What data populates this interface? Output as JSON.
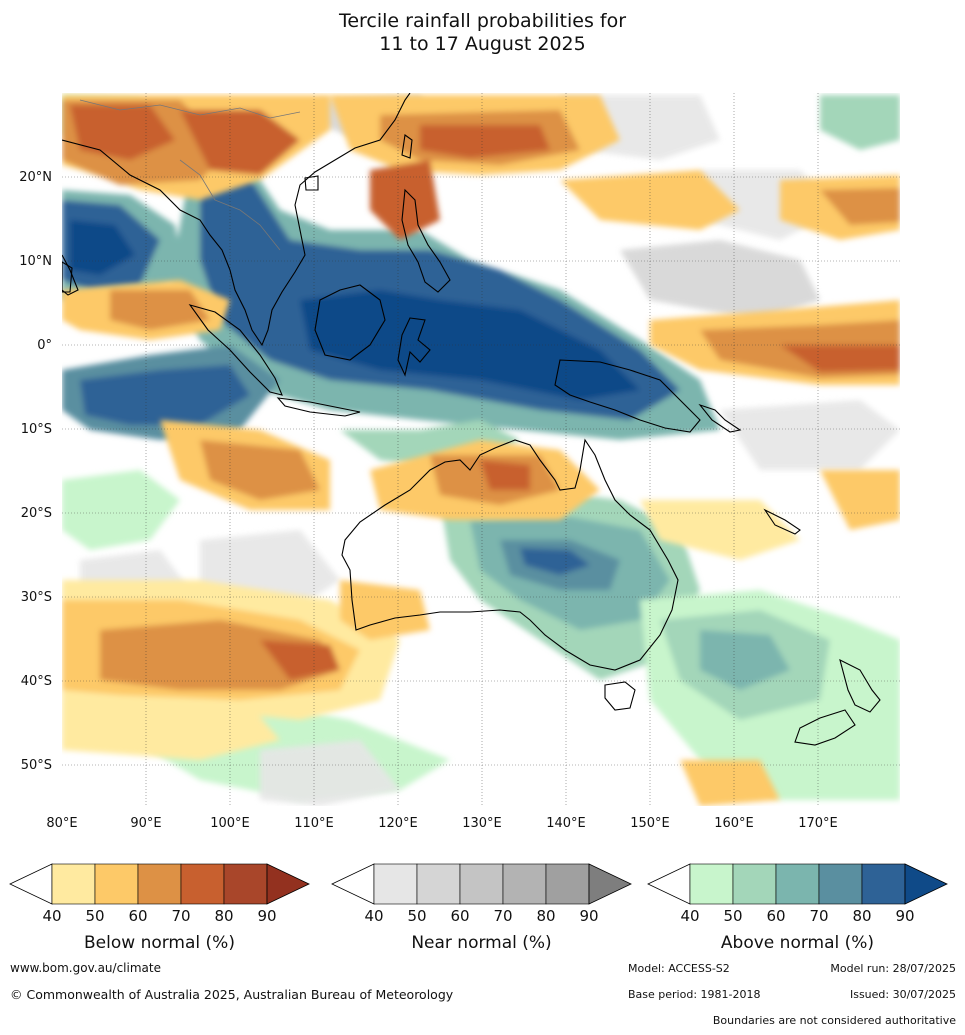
{
  "title_line1": "Tercile rainfall probabilities for",
  "title_line2": "11 to 17 August 2025",
  "lon_labels": [
    "80°E",
    "90°E",
    "100°E",
    "110°E",
    "120°E",
    "130°E",
    "140°E",
    "150°E",
    "160°E",
    "170°E"
  ],
  "lat_labels": [
    "20°N",
    "10°N",
    "0°",
    "10°S",
    "20°S",
    "30°S",
    "40°S",
    "50°S"
  ],
  "colorbars": [
    {
      "title": "Below normal (%)",
      "ticks": [
        "40",
        "50",
        "60",
        "70",
        "80",
        "90"
      ],
      "colors": [
        "#ffffff",
        "#ffeaa0",
        "#fdc968",
        "#dd9145",
        "#c8602f",
        "#a9462a",
        "#93311f"
      ]
    },
    {
      "title": "Near normal (%)",
      "ticks": [
        "40",
        "50",
        "60",
        "70",
        "80",
        "90"
      ],
      "colors": [
        "#ffffff",
        "#e6e6e6",
        "#d5d5d5",
        "#c4c4c4",
        "#b3b3b3",
        "#a0a0a0",
        "#7e7e7e"
      ]
    },
    {
      "title": "Above normal (%)",
      "ticks": [
        "40",
        "50",
        "60",
        "70",
        "80",
        "90"
      ],
      "colors": [
        "#ffffff",
        "#c8f5cc",
        "#a3d6b9",
        "#7bb5ae",
        "#5a8fa0",
        "#2e6296",
        "#0f4a88"
      ]
    }
  ],
  "footer": {
    "website": "www.bom.gov.au/climate",
    "copyright": "© Commonwealth of Australia 2025, Australian Bureau of Meteorology",
    "model": "Model: ACCESS-S2",
    "model_run": "Model run: 28/07/2025",
    "base_period": "Base period: 1981-2018",
    "issued": "Issued: 30/07/2025",
    "disclaimer": "Boundaries are not considered authoritative"
  }
}
